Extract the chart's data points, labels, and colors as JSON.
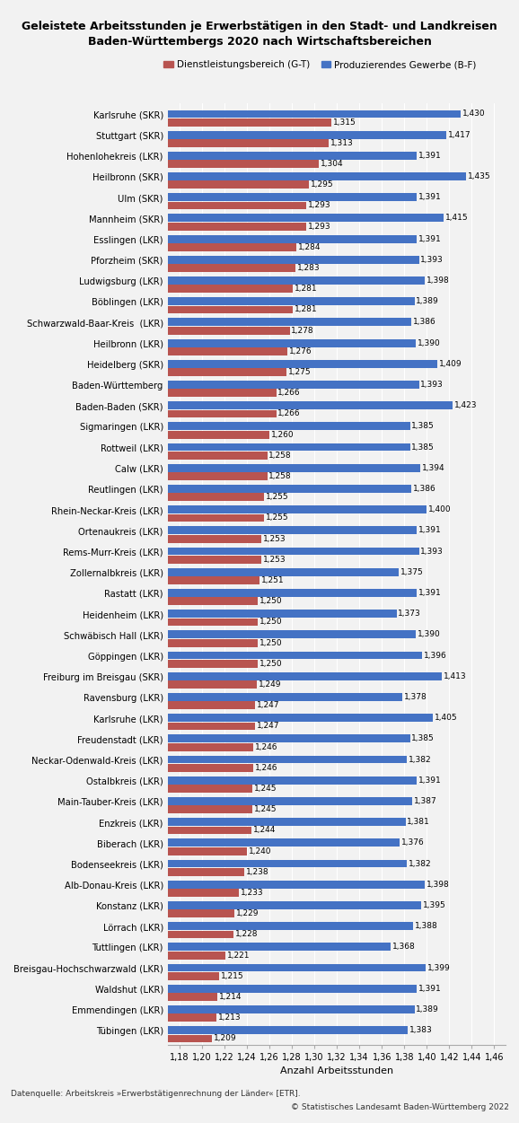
{
  "title": "Geleistete Arbeitsstunden je Erwerbstätigen in den Stadt- und Landkreisen\nBaden-Württembergs 2020 nach Wirtschaftsbereichen",
  "categories": [
    "Karlsruhe (SKR)",
    "Stuttgart (SKR)",
    "Hohenlohekreis (LKR)",
    "Heilbronn (SKR)",
    "Ulm (SKR)",
    "Mannheim (SKR)",
    "Esslingen (LKR)",
    "Pforzheim (SKR)",
    "Ludwigsburg (LKR)",
    "Böblingen (LKR)",
    "Schwarzwald-Baar-Kreis  (LKR)",
    "Heilbronn (LKR)",
    "Heidelberg (SKR)",
    "Baden-Württemberg",
    "Baden-Baden (SKR)",
    "Sigmaringen (LKR)",
    "Rottweil (LKR)",
    "Calw (LKR)",
    "Reutlingen (LKR)",
    "Rhein-Neckar-Kreis (LKR)",
    "Ortenaukreis (LKR)",
    "Rems-Murr-Kreis (LKR)",
    "Zollernalbkreis (LKR)",
    "Rastatt (LKR)",
    "Heidenheim (LKR)",
    "Schwäbisch Hall (LKR)",
    "Göppingen (LKR)",
    "Freiburg im Breisgau (SKR)",
    "Ravensburg (LKR)",
    "Karlsruhe (LKR)",
    "Freudenstadt (LKR)",
    "Neckar-Odenwald-Kreis (LKR)",
    "Ostalbkreis (LKR)",
    "Main-Tauber-Kreis (LKR)",
    "Enzkreis (LKR)",
    "Biberach (LKR)",
    "Bodenseekreis (LKR)",
    "Alb-Donau-Kreis (LKR)",
    "Konstanz (LKR)",
    "Lörrach (LKR)",
    "Tuttlingen (LKR)",
    "Breisgau-Hochschwarzwald (LKR)",
    "Waldshut (LKR)",
    "Emmendingen (LKR)",
    "Tübingen (LKR)"
  ],
  "dienstleistung": [
    1.315,
    1.313,
    1.304,
    1.295,
    1.293,
    1.293,
    1.284,
    1.283,
    1.281,
    1.281,
    1.278,
    1.276,
    1.275,
    1.266,
    1.266,
    1.26,
    1.258,
    1.258,
    1.255,
    1.255,
    1.253,
    1.253,
    1.251,
    1.25,
    1.25,
    1.25,
    1.25,
    1.249,
    1.247,
    1.247,
    1.246,
    1.246,
    1.245,
    1.245,
    1.244,
    1.24,
    1.238,
    1.233,
    1.229,
    1.228,
    1.221,
    1.215,
    1.214,
    1.213,
    1.209
  ],
  "produzierendes": [
    1.43,
    1.417,
    1.391,
    1.435,
    1.391,
    1.415,
    1.391,
    1.393,
    1.398,
    1.389,
    1.386,
    1.39,
    1.409,
    1.393,
    1.423,
    1.385,
    1.385,
    1.394,
    1.386,
    1.4,
    1.391,
    1.393,
    1.375,
    1.391,
    1.373,
    1.39,
    1.396,
    1.413,
    1.378,
    1.405,
    1.385,
    1.382,
    1.391,
    1.387,
    1.381,
    1.376,
    1.382,
    1.398,
    1.395,
    1.388,
    1.368,
    1.399,
    1.391,
    1.389,
    1.383
  ],
  "color_dienstleistung": "#B85450",
  "color_produzierendes": "#4472C4",
  "legend_dienstleistung": "Dienstleistungsbereich (G-T)",
  "legend_produzierendes": "Produzierendes Gewerbe (B-F)",
  "xlabel": "Anzahl Arbeitsstunden",
  "footer1": "Datenquelle: Arbeitskreis »Erwerbstätigenrechnung der Länder« [ETR].",
  "footer2": "© Statistisches Landesamt Baden-Württemberg 2022",
  "background_color": "#F2F2F2",
  "xlim_min": 1.17,
  "xlim_max": 1.47,
  "bar_height": 0.38
}
